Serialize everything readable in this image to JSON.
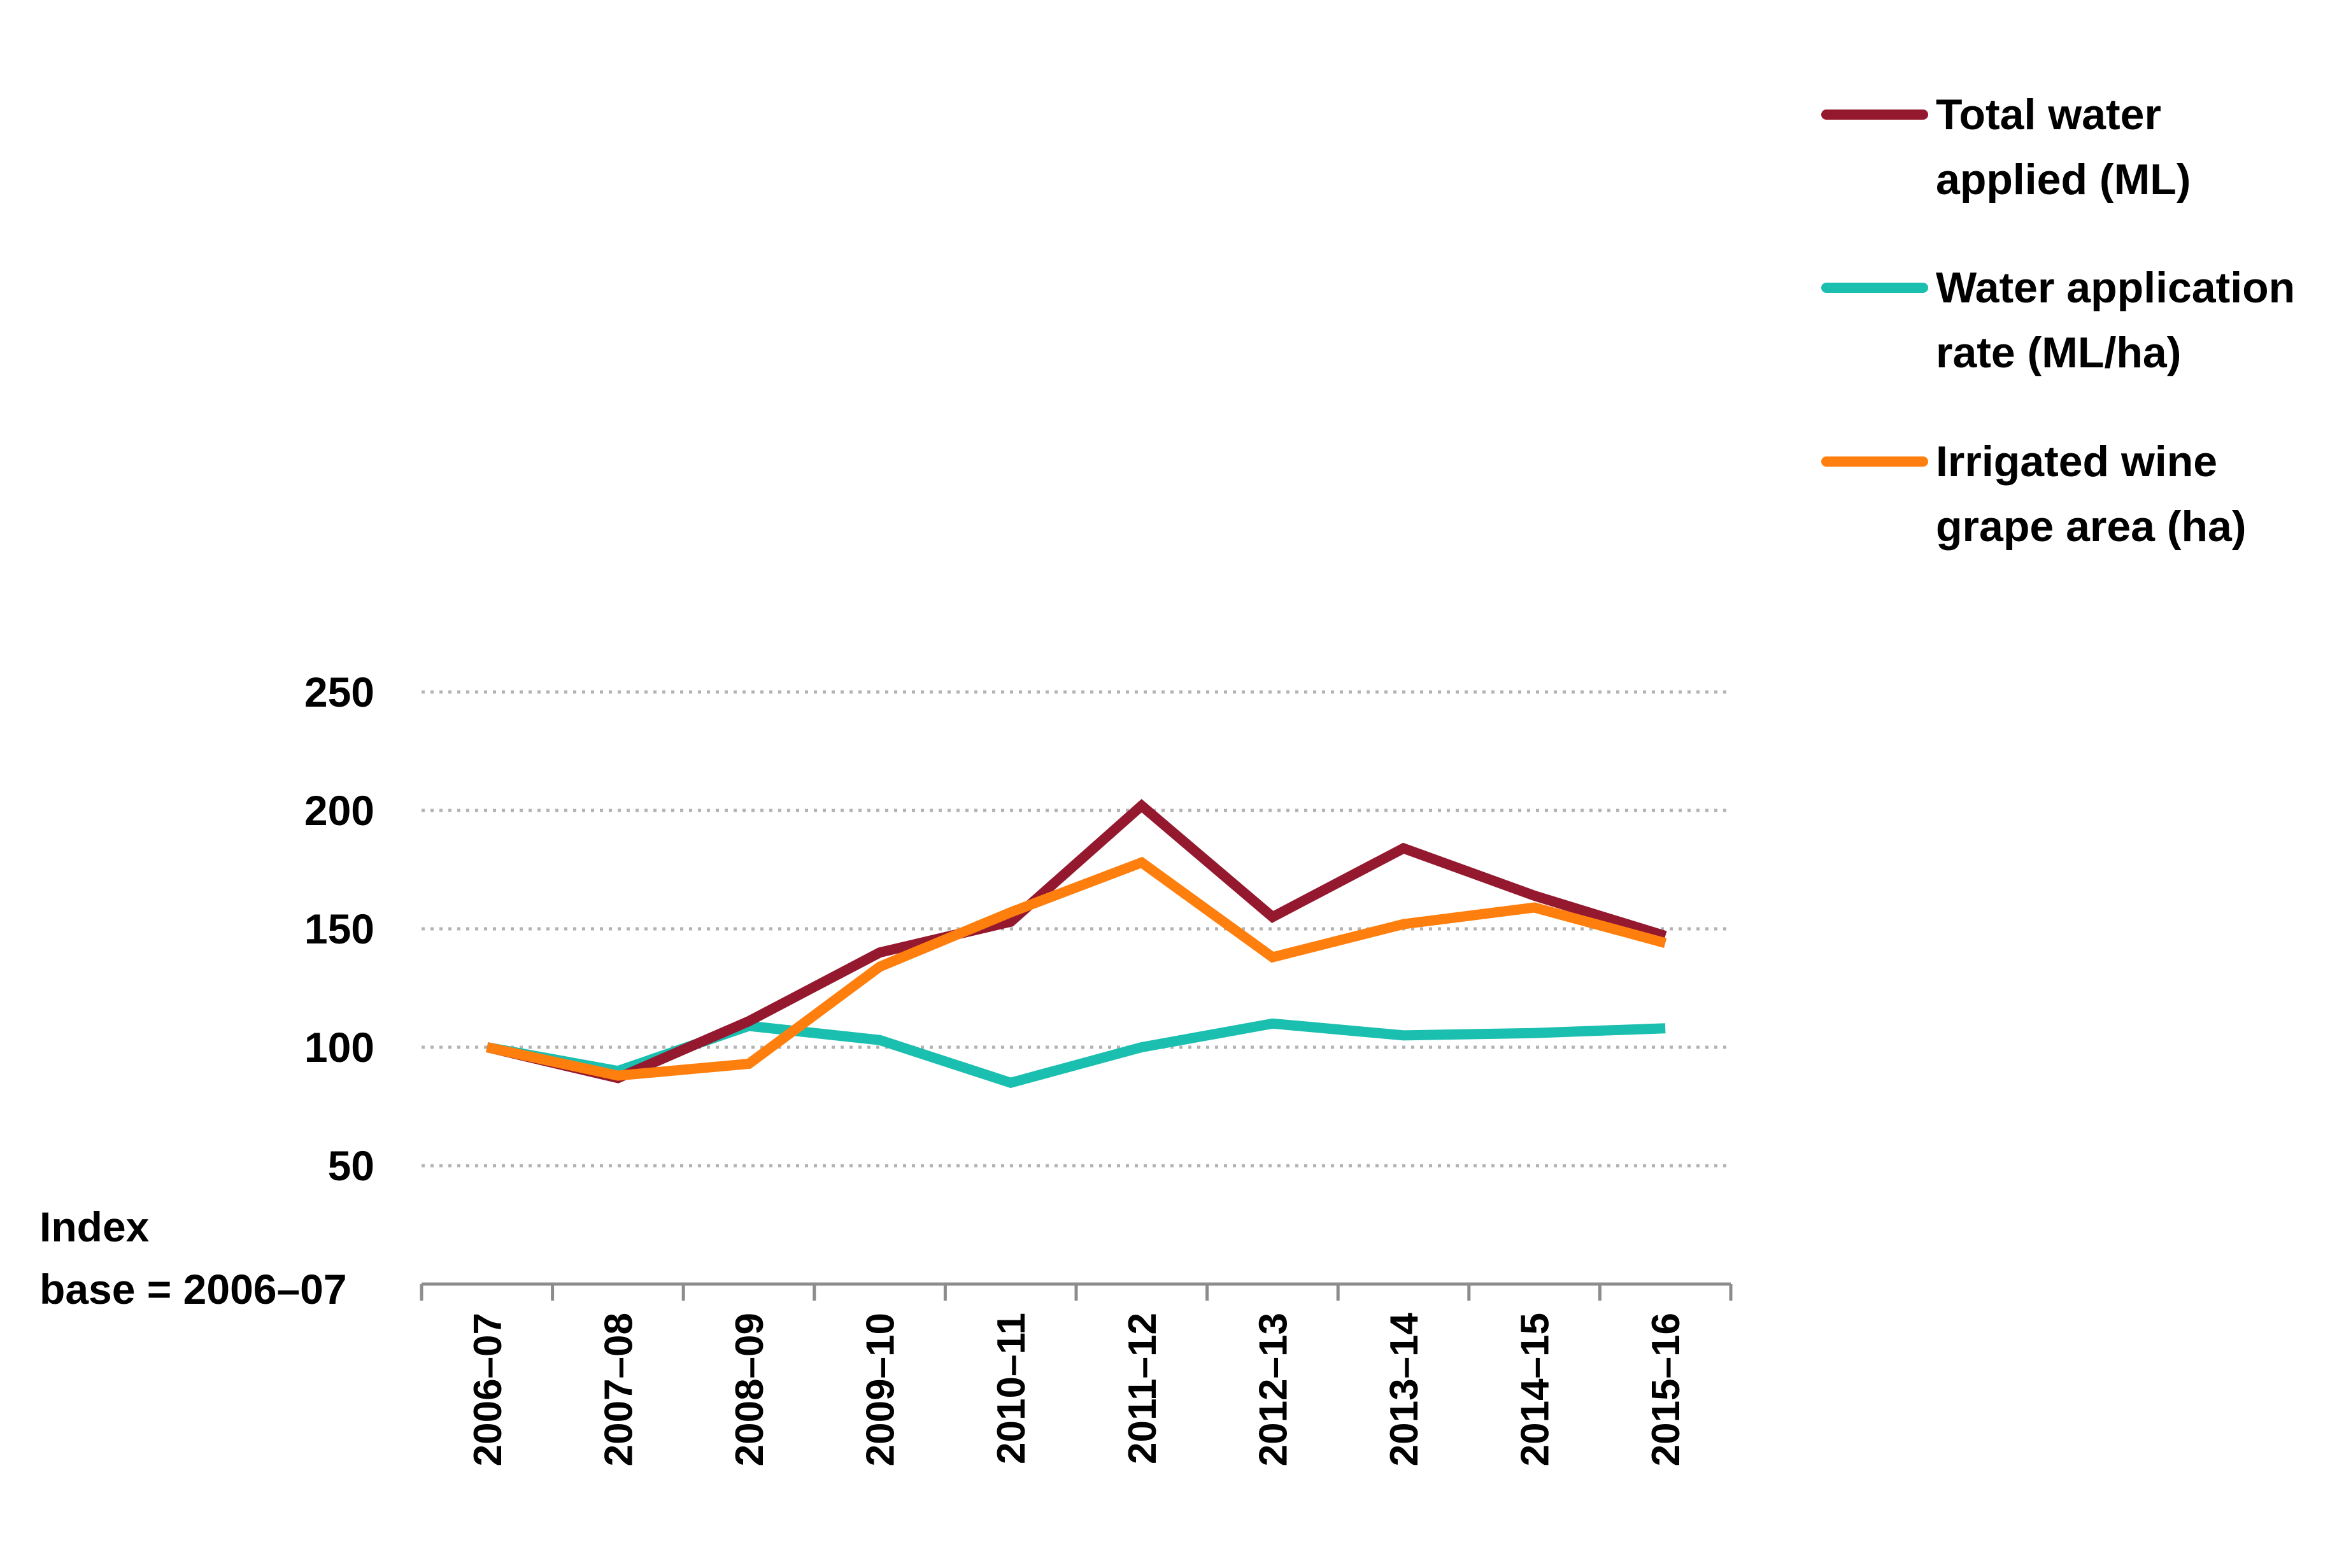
{
  "chart_data": {
    "type": "line",
    "title": "",
    "xlabel": "",
    "ylabel": "",
    "y_axis_note": [
      "Index",
      "base = 2006–07"
    ],
    "categories": [
      "2006–07",
      "2007–08",
      "2008–09",
      "2009–10",
      "2010–11",
      "2011–12",
      "2012–13",
      "2013–14",
      "2014–15",
      "2015–16"
    ],
    "ylim": [
      0,
      250
    ],
    "yticks": [
      50,
      100,
      150,
      200,
      250
    ],
    "grid": true,
    "legend_position": "right",
    "series": [
      {
        "name": "Total water applied (ML)",
        "legend_lines": [
          "Total water",
          "applied (ML)"
        ],
        "color": "#95192e",
        "values": [
          100,
          87,
          111,
          140,
          153,
          202,
          155,
          184,
          164,
          147
        ]
      },
      {
        "name": "Water application rate (ML/ha)",
        "legend_lines": [
          "Water application",
          "rate (ML/ha)"
        ],
        "color": "#1abfb0",
        "values": [
          100,
          90,
          109,
          103,
          85,
          100,
          110,
          105,
          106,
          108
        ]
      },
      {
        "name": "Irrigated wine grape area (ha)",
        "legend_lines": [
          "Irrigated wine",
          "grape area (ha)"
        ],
        "color": "#ff7f0e",
        "values": [
          100,
          88,
          93,
          134,
          157,
          178,
          138,
          152,
          159,
          144
        ]
      }
    ]
  }
}
